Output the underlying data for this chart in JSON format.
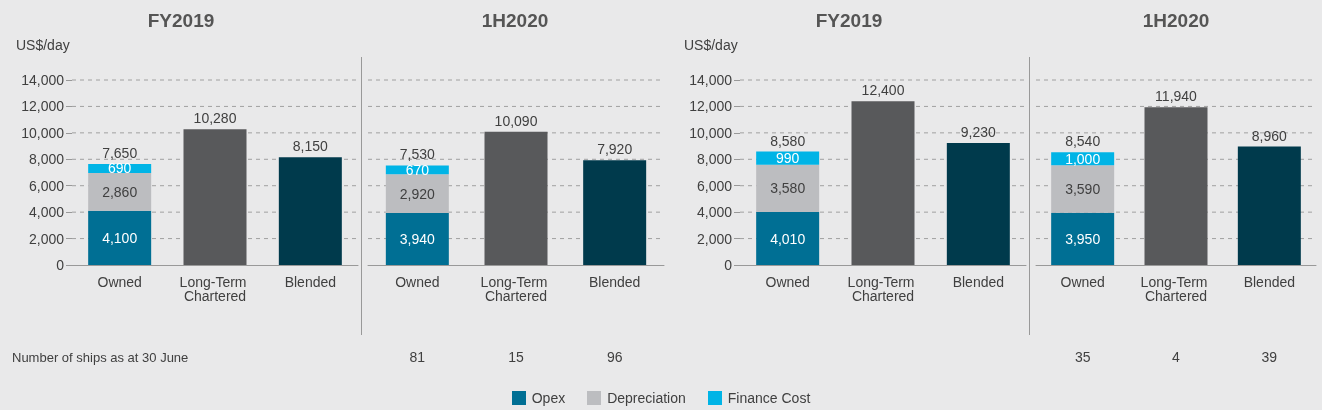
{
  "chart_data": [
    {
      "type": "bar",
      "title": "FY2019",
      "ylabel": "US$/day",
      "categories": [
        "Owned",
        "Long-Term Chartered",
        "Blended"
      ],
      "stacked": true,
      "legend": "bottom",
      "grid": "y",
      "ylim": [
        0,
        14000
      ],
      "yticks": [
        0,
        {
          "value": 2000,
          "label": "2,000"
        },
        {
          "value": 4000,
          "label": "4,000"
        },
        {
          "value": 6000,
          "label": "6,000"
        },
        {
          "value": 8000,
          "label": "8,000"
        },
        {
          "value": 10000,
          "label": "10,000"
        },
        {
          "value": 12000,
          "label": "12,000"
        },
        {
          "value": 14000,
          "label": "14,000"
        }
      ],
      "series": [
        {
          "name": "Opex",
          "color": "#006f94",
          "values": [
            4100,
            null,
            null
          ],
          "value_labels": [
            "4,100",
            null,
            null
          ]
        },
        {
          "name": "Depreciation",
          "color": "#bcbdc0",
          "values": [
            2860,
            null,
            null
          ],
          "value_labels": [
            "2,860",
            null,
            null
          ]
        },
        {
          "name": "Finance Cost",
          "color": "#00b4e6",
          "values": [
            690,
            null,
            null
          ],
          "value_labels": [
            "690",
            null,
            null
          ]
        },
        {
          "color": "#58595b",
          "values": [
            null,
            10280,
            null
          ]
        },
        {
          "color": "#003a4c",
          "values": [
            null,
            null,
            8150
          ]
        }
      ],
      "totals": [
        "7,650",
        "10,280",
        "8,150"
      ],
      "annotations": [
        "Number of ships as at 30 June"
      ]
    },
    {
      "type": "bar",
      "title": "1H2020",
      "categories": [
        "Owned",
        "Long-Term Chartered",
        "Blended"
      ],
      "stacked": true,
      "grid": "y",
      "tick_labels": "x",
      "ylim": [
        0,
        14000
      ],
      "yticks": [
        0,
        2000,
        4000,
        6000,
        8000,
        10000,
        12000,
        14000
      ],
      "series": [
        {
          "color": "#006f94",
          "values": [
            3940,
            null,
            null
          ],
          "value_labels": [
            "3,940",
            null,
            null
          ]
        },
        {
          "color": "#bcbdc0",
          "values": [
            2920,
            null,
            null
          ],
          "value_labels": [
            "2,920",
            null,
            null
          ]
        },
        {
          "color": "#00b4e6",
          "values": [
            670,
            null,
            null
          ],
          "value_labels": [
            "670",
            null,
            null
          ]
        },
        {
          "color": "#58595b",
          "values": [
            null,
            10090,
            null
          ]
        },
        {
          "color": "#003a4c",
          "values": [
            null,
            null,
            7920
          ]
        }
      ],
      "totals": [
        "7,530",
        "10,090",
        "7,920"
      ],
      "annotations": [
        "81",
        "15",
        "96"
      ]
    },
    {
      "type": "bar",
      "title": "FY2019",
      "ylabel": "US$/day",
      "categories": [
        "Owned",
        "Long-Term Chartered",
        "Blended"
      ],
      "stacked": true,
      "grid": "y",
      "ylim": [
        0,
        14000
      ],
      "yticks": [
        0,
        {
          "value": 2000,
          "label": "2,000"
        },
        {
          "value": 4000,
          "label": "4,000"
        },
        {
          "value": 6000,
          "label": "6,000"
        },
        {
          "value": 8000,
          "label": "8,000"
        },
        {
          "value": 10000,
          "label": "10,000"
        },
        {
          "value": 12000,
          "label": "12,000"
        },
        {
          "value": 14000,
          "label": "14,000"
        }
      ],
      "series": [
        {
          "color": "#006f94",
          "values": [
            4010,
            null,
            null
          ],
          "value_labels": [
            "4,010",
            null,
            null
          ]
        },
        {
          "color": "#bcbdc0",
          "values": [
            3580,
            null,
            null
          ],
          "value_labels": [
            "3,580",
            null,
            null
          ]
        },
        {
          "color": "#00b4e6",
          "values": [
            990,
            null,
            null
          ],
          "value_labels": [
            "990",
            null,
            null
          ]
        },
        {
          "color": "#58595b",
          "values": [
            null,
            12400,
            null
          ]
        },
        {
          "color": "#003a4c",
          "values": [
            null,
            null,
            9230
          ]
        }
      ],
      "totals": [
        "8,580",
        "12,400",
        "9,230"
      ]
    },
    {
      "type": "bar",
      "title": "1H2020",
      "categories": [
        "Owned",
        "Long-Term Chartered",
        "Blended"
      ],
      "stacked": true,
      "grid": "y",
      "tick_labels": "x",
      "ylim": [
        0,
        14000
      ],
      "yticks": [
        0,
        2000,
        4000,
        6000,
        8000,
        10000,
        12000,
        14000
      ],
      "series": [
        {
          "color": "#006f94",
          "values": [
            3950,
            null,
            null
          ],
          "value_labels": [
            "3,950",
            null,
            null
          ]
        },
        {
          "color": "#bcbdc0",
          "values": [
            3590,
            null,
            null
          ],
          "value_labels": [
            "3,590",
            null,
            null
          ]
        },
        {
          "color": "#00b4e6",
          "values": [
            1000,
            null,
            null
          ],
          "value_labels": [
            "1,000",
            null,
            null
          ]
        },
        {
          "color": "#58595b",
          "values": [
            null,
            11940,
            null
          ]
        },
        {
          "color": "#003a4c",
          "values": [
            null,
            null,
            8960
          ]
        }
      ],
      "totals": [
        "8,540",
        "11,940",
        "8,960"
      ],
      "annotations": [
        "35",
        "4",
        "39"
      ]
    }
  ]
}
